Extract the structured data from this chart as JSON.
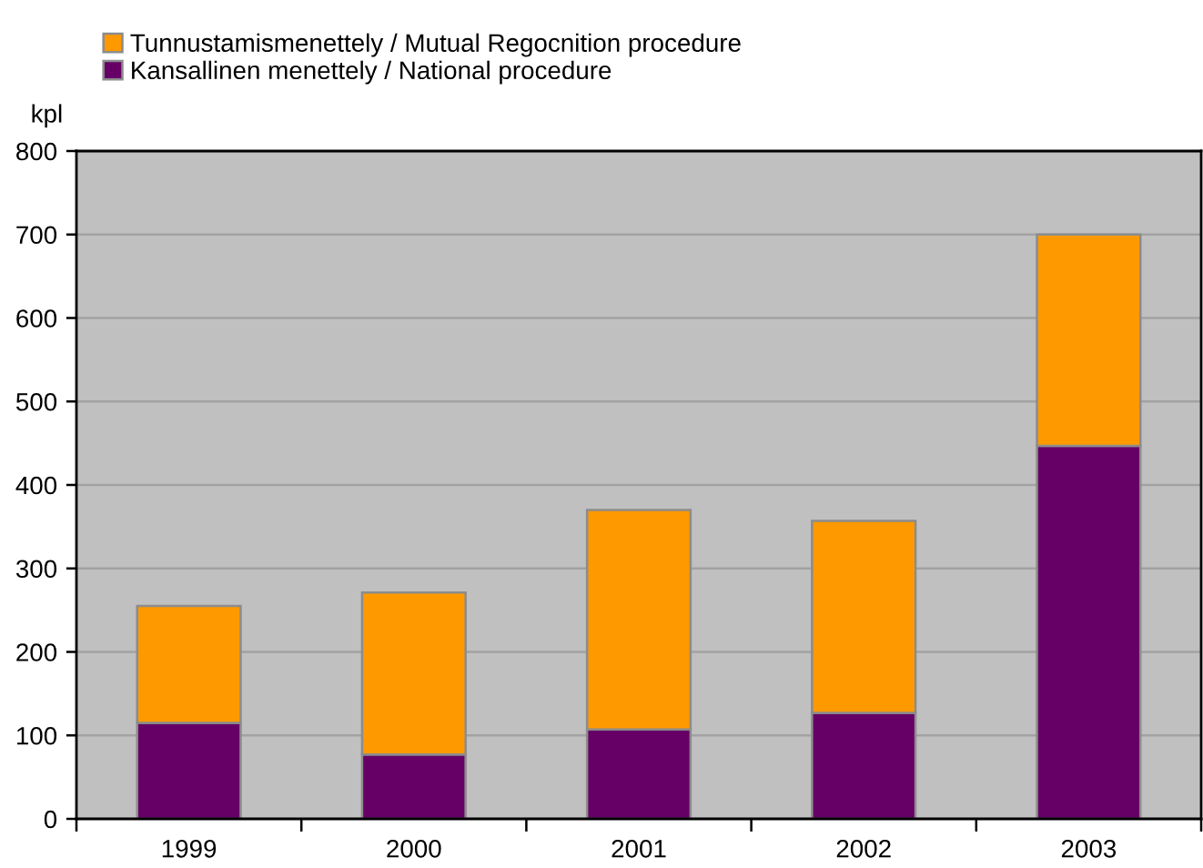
{
  "chart_data": {
    "type": "bar",
    "stacked": true,
    "ylabel": "kpl",
    "categories": [
      "1999",
      "2000",
      "2001",
      "2002",
      "2003"
    ],
    "series": [
      {
        "name": "Kansallinen menettely / National procedure",
        "color": "#660066",
        "values": [
          115,
          77,
          107,
          127,
          447
        ]
      },
      {
        "name": "Tunnustamismenettely / Mutual Regocnition procedure",
        "color": "#ff9900",
        "values": [
          140,
          194,
          263,
          230,
          253
        ]
      }
    ],
    "ylim": [
      0,
      800
    ],
    "yticks": [
      0,
      100,
      200,
      300,
      400,
      500,
      600,
      700,
      800
    ],
    "grid": "y",
    "legend": "top left"
  }
}
